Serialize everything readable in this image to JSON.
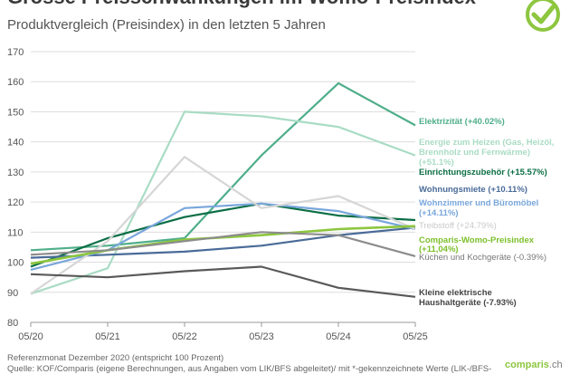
{
  "header": {
    "title": "Grosse Preisschwankungen im Womo-Preisindex",
    "subtitle": "Produktvergleich (Preisindex) in den letzten 5 Jahren"
  },
  "footer": {
    "note1": "Referenzmonat Dezember 2020 (entspricht 100 Prozent)",
    "note2": "Quelle: KOF/Comparis (eigene Berechnungen, aus Angaben vom LIK/BFS abgeleitet)/ mit *-gekennzeichnete Werte (LIK-/BFS-",
    "brand": "comparis",
    "brand_tld": ".ch"
  },
  "chart_data": {
    "type": "line",
    "title": "Grosse Preisschwankungen im Womo-Preisindex",
    "subtitle": "Produktvergleich (Preisindex) in den letzten 5 Jahren",
    "x": [
      "05/20",
      "05/21",
      "05/22",
      "05/23",
      "05/24",
      "05/25"
    ],
    "ylim": [
      80,
      170
    ],
    "yticks": [
      80,
      90,
      100,
      110,
      120,
      130,
      140,
      150,
      160,
      170
    ],
    "grid": true,
    "series": [
      {
        "name": "Elektrizität",
        "label": "Elektrizität (+40.02%)",
        "color": "#4fae8a",
        "values": [
          104,
          105.5,
          108,
          135.5,
          159.5,
          145.5
        ]
      },
      {
        "name": "Energie zum Heizen",
        "label": "Energie zum Heizen (Gas, Heizöl, Brennholz und Fernwärme) (+51.1%)",
        "color": "#a9dcc4",
        "values": [
          89.5,
          98,
          150,
          148.5,
          145,
          135.5
        ]
      },
      {
        "name": "Einrichtungszubehör",
        "label": "Einrichtungszubehör (+15.57%)",
        "color": "#0b6e45",
        "values": [
          98.5,
          108,
          115,
          119.5,
          115.5,
          114
        ]
      },
      {
        "name": "Wohnungsmiete",
        "label": "Wohnungsmiete (+10.11%)",
        "color": "#4a6b98",
        "values": [
          101.5,
          102.5,
          103.5,
          105.5,
          109,
          111.5
        ]
      },
      {
        "name": "Wohnzimmer und Büromöbel",
        "label": "Wohnzimmer und Büromöbel (+14.11%)",
        "color": "#78a6dc",
        "values": [
          97.5,
          104,
          118,
          119.5,
          117,
          111
        ]
      },
      {
        "name": "Treibstoff",
        "label": "Treibstoff* (+24.79%)",
        "color": "#d6d6d6",
        "values": [
          89.5,
          107,
          135,
          118,
          122,
          111
        ]
      },
      {
        "name": "Comparis-Womo-Preisindex",
        "label": "Comparis-Womo-Preisindex (+11,04%)",
        "color": "#8dc63f",
        "values": [
          99.5,
          104,
          107.5,
          109,
          111,
          112
        ]
      },
      {
        "name": "Küchen und Kochgeräte",
        "label": "Küchen und Kochgeräte (-0.39%)",
        "color": "#8c8c8c",
        "values": [
          102.5,
          104,
          107,
          110,
          109,
          102
        ]
      },
      {
        "name": "Kleine elektrische Haushaltgeräte",
        "label": "Kleine elektrische Haushaltgeräte (-7.93%)",
        "color": "#595959",
        "values": [
          96,
          95,
          97,
          98.5,
          91.5,
          88.5
        ]
      }
    ],
    "legend_labels": [
      {
        "text": "Elektrizität (+40.02%)",
        "color": "#4fae8a",
        "bold": true
      },
      {
        "text": "Energie zum Heizen (Gas, Heizöl,",
        "color": "#a9dcc4",
        "bold": true
      },
      {
        "text": "Brennholz und Fernwärme)",
        "color": "#a9dcc4",
        "bold": true
      },
      {
        "text": "(+51.1%)",
        "color": "#a9dcc4",
        "bold": true
      },
      {
        "text": "Einrichtungszubehör (+15.57%)",
        "color": "#0b6e45",
        "bold": true
      },
      {
        "text": "Wohnungsmiete (+10.11%)",
        "color": "#4a6b98",
        "bold": true
      },
      {
        "text": "Wohnzimmer und Büromöbel",
        "color": "#78a6dc",
        "bold": true
      },
      {
        "text": "(+14.11%)",
        "color": "#78a6dc",
        "bold": true
      },
      {
        "text": "Treibstoff (+24.79%)",
        "color": "#c9c9c9",
        "bold": false
      },
      {
        "text": "Comparis-Womo-Preisindex",
        "color": "#7cbf2a",
        "bold": true
      },
      {
        "text": "(+11,04%)",
        "color": "#7cbf2a",
        "bold": true
      },
      {
        "text": "Küchen und Kochgeräte (-0.39%)",
        "color": "#777777",
        "bold": false
      },
      {
        "text": "Kleine elektrische",
        "color": "#444444",
        "bold": true
      },
      {
        "text": "Haushaltgeräte (-7.93%)",
        "color": "#444444",
        "bold": true
      }
    ]
  }
}
